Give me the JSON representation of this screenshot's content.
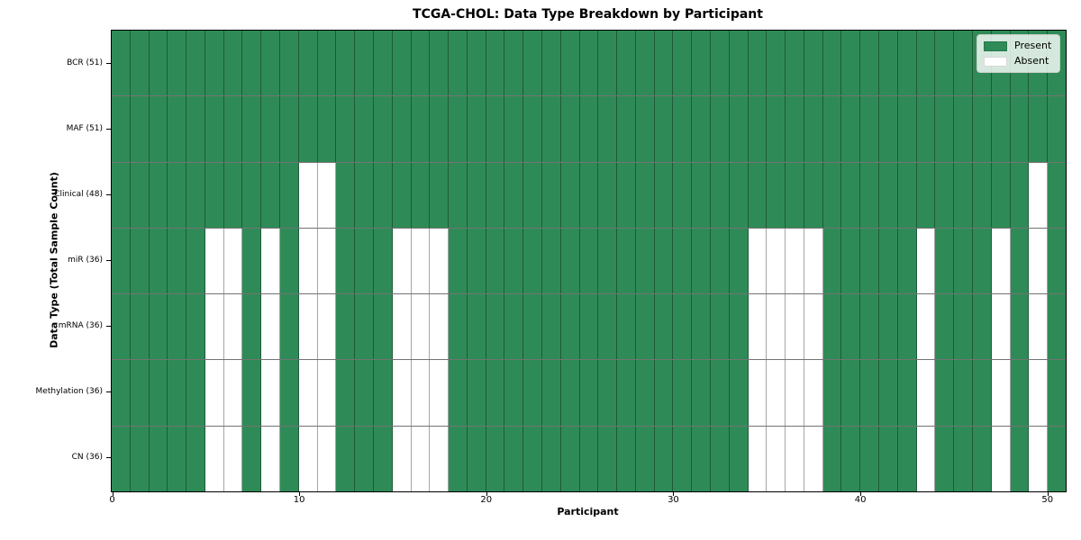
{
  "figure": {
    "title": "TCGA-CHOL: Data Type Breakdown by Participant",
    "xlabel": "Participant",
    "ylabel": "Data Type (Total Sample Count)"
  },
  "legend": {
    "items": [
      {
        "label": "Present",
        "color": "#2e8b57"
      },
      {
        "label": "Absent",
        "color": "#ffffff"
      }
    ]
  },
  "chart_data": {
    "type": "heatmap",
    "title": "TCGA-CHOL: Data Type Breakdown by Participant",
    "xlabel": "Participant",
    "ylabel": "Data Type (Total Sample Count)",
    "x_range": [
      0,
      51
    ],
    "n_participants": 51,
    "x_ticks": [
      0,
      10,
      20,
      30,
      40,
      50
    ],
    "cell_values": {
      "present": 1,
      "absent": 0
    },
    "rows": [
      {
        "label": "BCR (51)",
        "present_count": 51,
        "absent_participants": []
      },
      {
        "label": "MAF (51)",
        "present_count": 51,
        "absent_participants": []
      },
      {
        "label": "Clinical (48)",
        "present_count": 48,
        "absent_participants": [
          10,
          11,
          49
        ]
      },
      {
        "label": "miR (36)",
        "present_count": 36,
        "absent_participants": [
          5,
          6,
          8,
          10,
          11,
          15,
          16,
          17,
          34,
          35,
          36,
          37,
          43,
          47,
          49
        ]
      },
      {
        "label": "mRNA (36)",
        "present_count": 36,
        "absent_participants": [
          5,
          6,
          8,
          10,
          11,
          15,
          16,
          17,
          34,
          35,
          36,
          37,
          43,
          47,
          49
        ]
      },
      {
        "label": "Methylation (36)",
        "present_count": 36,
        "absent_participants": [
          5,
          6,
          8,
          10,
          11,
          15,
          16,
          17,
          34,
          35,
          36,
          37,
          43,
          47,
          49
        ]
      },
      {
        "label": "CN (36)",
        "present_count": 36,
        "absent_participants": [
          5,
          6,
          8,
          10,
          11,
          15,
          16,
          17,
          34,
          35,
          36,
          37,
          43,
          47,
          49
        ]
      }
    ],
    "colors": {
      "present": "#2e8b57",
      "absent": "#ffffff"
    },
    "legend_entries": [
      "Present",
      "Absent"
    ],
    "legend_position": "upper right",
    "grid": true
  }
}
